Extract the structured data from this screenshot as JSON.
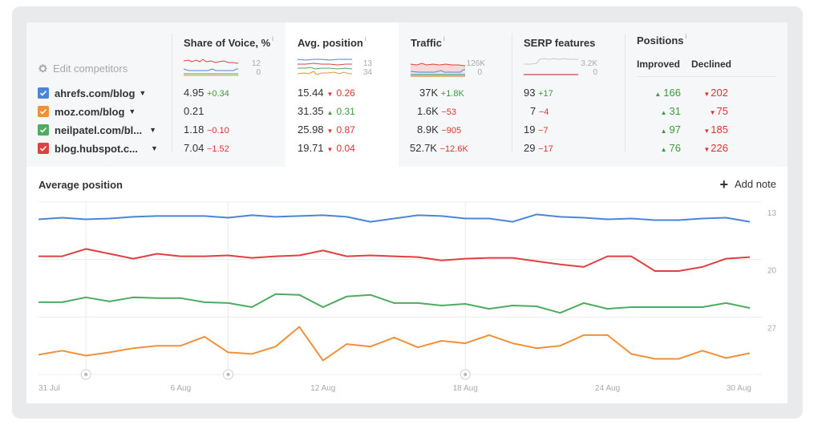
{
  "panel": {
    "edit_competitors": "Edit competitors",
    "competitors": [
      {
        "name": "ahrefs.com/blog",
        "color": "#4a86d8"
      },
      {
        "name": "moz.com/blog",
        "color": "#f0913a"
      },
      {
        "name": "neilpatel.com/bl...",
        "color": "#4eab5f"
      },
      {
        "name": "blog.hubspot.c...",
        "color": "#e04040"
      }
    ],
    "columns": {
      "sov": {
        "title": "Share of Voice, %",
        "info": "i",
        "scale_max": "12",
        "scale_min": "0",
        "rows": [
          {
            "value": "4.95",
            "delta": "+0.34",
            "dir": "pos"
          },
          {
            "value": "0.21",
            "delta": "",
            "dir": ""
          },
          {
            "value": "1.18",
            "delta": "−0.10",
            "dir": "neg"
          },
          {
            "value": "7.04",
            "delta": "−1.52",
            "dir": "neg"
          }
        ]
      },
      "avgpos": {
        "title": "Avg. position",
        "info": "i",
        "scale_top": "13",
        "scale_bottom": "34",
        "rows": [
          {
            "value": "15.44",
            "arrow": "down",
            "delta": "0.26",
            "dir": "neg"
          },
          {
            "value": "31.35",
            "arrow": "up",
            "delta": "0.31",
            "dir": "pos"
          },
          {
            "value": "25.98",
            "arrow": "down",
            "delta": "0.87",
            "dir": "neg"
          },
          {
            "value": "19.71",
            "arrow": "down",
            "delta": "0.04",
            "dir": "neg"
          }
        ]
      },
      "traffic": {
        "title": "Traffic",
        "info": "i",
        "scale_max": "126K",
        "scale_min": "0",
        "rows": [
          {
            "value": "37K",
            "delta": "+1.8K",
            "dir": "pos"
          },
          {
            "value": "1.6K",
            "delta": "−53",
            "dir": "neg"
          },
          {
            "value": "8.9K",
            "delta": "−905",
            "dir": "neg"
          },
          {
            "value": "52.7K",
            "delta": "−12.6K",
            "dir": "neg"
          }
        ]
      },
      "serp": {
        "title": "SERP features",
        "scale_max": "3.2K",
        "scale_min": "0",
        "rows": [
          {
            "value": "93",
            "delta": "+17",
            "dir": "pos"
          },
          {
            "value": "7",
            "delta": "−4",
            "dir": "neg"
          },
          {
            "value": "19",
            "delta": "−7",
            "dir": "neg"
          },
          {
            "value": "29",
            "delta": "−17",
            "dir": "neg"
          }
        ]
      },
      "positions": {
        "title": "Positions",
        "info": "i",
        "improved_label": "Improved",
        "declined_label": "Declined",
        "rows": [
          {
            "improved": "166",
            "declined": "202"
          },
          {
            "improved": "31",
            "declined": "75"
          },
          {
            "improved": "97",
            "declined": "185"
          },
          {
            "improved": "76",
            "declined": "226"
          }
        ]
      }
    },
    "arrows": {
      "up": "▲",
      "down": "▼"
    }
  },
  "chart_section": {
    "title": "Average position",
    "add_note": "Add note",
    "add_note_icon": "plus-icon"
  },
  "chart_data": {
    "type": "line",
    "title": "Average position",
    "xlabel": "",
    "ylabel": "",
    "y_inverted": true,
    "ylim": [
      13,
      34
    ],
    "y_ticks": [
      "13",
      "20",
      "27"
    ],
    "x": [
      "31 Jul",
      "1 Aug",
      "2 Aug",
      "3 Aug",
      "4 Aug",
      "5 Aug",
      "6 Aug",
      "7 Aug",
      "8 Aug",
      "9 Aug",
      "10 Aug",
      "11 Aug",
      "12 Aug",
      "13 Aug",
      "14 Aug",
      "15 Aug",
      "16 Aug",
      "17 Aug",
      "18 Aug",
      "19 Aug",
      "20 Aug",
      "21 Aug",
      "22 Aug",
      "23 Aug",
      "24 Aug",
      "25 Aug",
      "26 Aug",
      "27 Aug",
      "28 Aug",
      "29 Aug",
      "30 Aug"
    ],
    "x_tick_labels": [
      "31 Jul",
      "6 Aug",
      "12 Aug",
      "18 Aug",
      "24 Aug",
      "30 Aug"
    ],
    "annotations": [
      "2 Aug",
      "8 Aug",
      "18 Aug"
    ],
    "grid": true,
    "series": [
      {
        "name": "ahrefs.com/blog",
        "color": "#4a86d8",
        "values": [
          15.1,
          14.9,
          15.1,
          15.0,
          14.8,
          14.7,
          14.7,
          14.7,
          14.9,
          14.6,
          14.8,
          14.7,
          14.6,
          14.8,
          15.4,
          15.0,
          14.6,
          14.7,
          15.0,
          15.0,
          15.4,
          14.5,
          14.8,
          14.9,
          15.1,
          15.0,
          15.2,
          15.2,
          15.0,
          14.9,
          15.4
        ]
      },
      {
        "name": "blog.hubspot.c...",
        "color": "#e04040",
        "values": [
          19.6,
          19.6,
          18.7,
          19.3,
          19.9,
          19.3,
          19.6,
          19.6,
          19.5,
          19.8,
          19.6,
          19.5,
          18.9,
          19.6,
          19.5,
          19.6,
          19.7,
          20.1,
          19.9,
          19.8,
          19.8,
          20.2,
          20.6,
          20.9,
          19.6,
          19.6,
          21.4,
          21.4,
          20.9,
          19.9,
          19.7
        ]
      },
      {
        "name": "neilpatel.com/bl...",
        "color": "#4eab5f",
        "values": [
          25.2,
          25.2,
          24.6,
          25.1,
          24.6,
          24.7,
          24.7,
          25.2,
          25.3,
          25.8,
          24.2,
          24.3,
          25.8,
          24.5,
          24.3,
          25.3,
          25.3,
          25.6,
          25.4,
          26.0,
          25.6,
          25.7,
          26.5,
          25.3,
          26.0,
          25.8,
          25.8,
          25.8,
          25.8,
          25.3,
          25.9
        ]
      },
      {
        "name": "moz.com/blog",
        "color": "#f0913a",
        "values": [
          31.6,
          31.1,
          31.7,
          31.3,
          30.8,
          30.5,
          30.5,
          29.4,
          31.3,
          31.5,
          30.6,
          28.2,
          32.3,
          30.3,
          30.6,
          29.5,
          30.7,
          29.9,
          30.2,
          29.2,
          30.2,
          30.8,
          30.5,
          29.2,
          29.2,
          31.5,
          32.1,
          32.1,
          31.1,
          32.0,
          31.4
        ]
      }
    ]
  }
}
